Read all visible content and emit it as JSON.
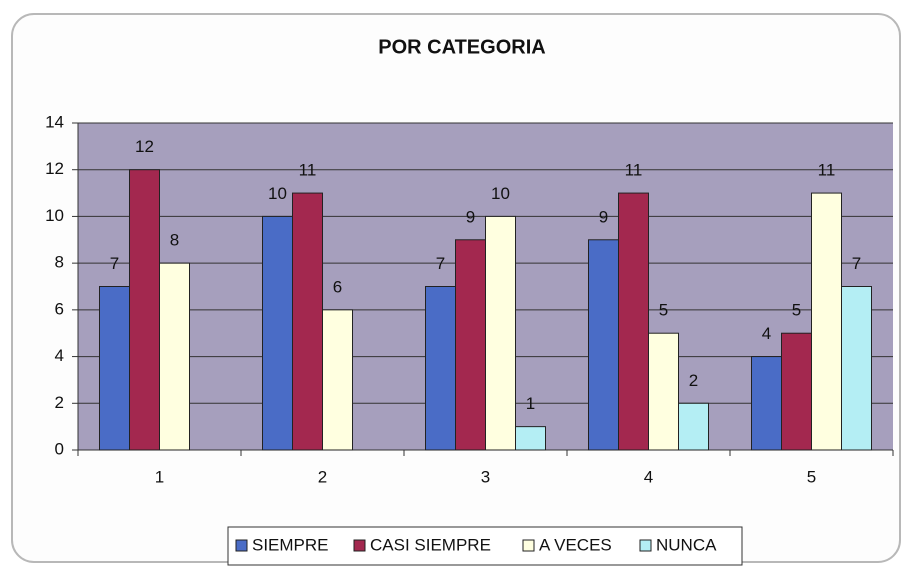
{
  "chart_data": {
    "type": "bar",
    "title": "POR CATEGORIA",
    "categories": [
      "1",
      "2",
      "3",
      "4",
      "5"
    ],
    "series": [
      {
        "name": "SIEMPRE",
        "color": "#4a6cc6",
        "values": [
          7,
          10,
          7,
          9,
          4
        ]
      },
      {
        "name": "CASI SIEMPRE",
        "color": "#a3284f",
        "values": [
          12,
          11,
          9,
          11,
          5
        ]
      },
      {
        "name": "A VECES",
        "color": "#ffffe0",
        "values": [
          8,
          6,
          10,
          5,
          11
        ]
      },
      {
        "name": "NUNCA",
        "color": "#b4eef4",
        "values": [
          null,
          null,
          1,
          2,
          7
        ]
      }
    ],
    "ylim": [
      0,
      14
    ],
    "yticks": [
      0,
      2,
      4,
      6,
      8,
      10,
      12,
      14
    ],
    "grid": true,
    "legend": "bottom"
  }
}
